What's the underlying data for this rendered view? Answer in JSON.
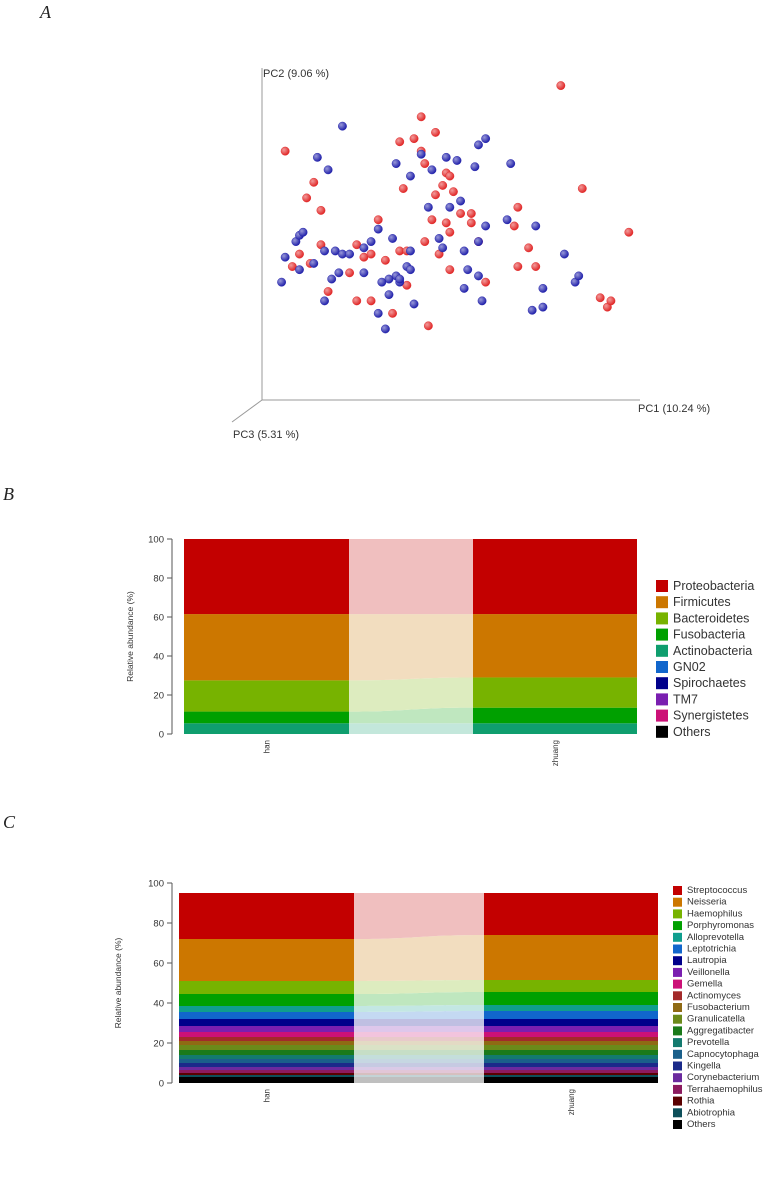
{
  "panels": {
    "a": "A",
    "b": "B",
    "c": "C"
  },
  "chart_data": [
    {
      "type": "scatter",
      "subtype": "3d-pca",
      "axes": {
        "pc1": "PC1  (10.24 %)",
        "pc2": "PC2  (9.06 %)",
        "pc3": "PC3  (5.31 %)"
      },
      "series": [
        {
          "name": "han",
          "color": "#e02020",
          "points": [
            [
              0.38,
              0.78
            ],
            [
              0.4,
              0.74
            ],
            [
              0.41,
              0.7
            ],
            [
              0.34,
              0.77
            ],
            [
              0.44,
              0.6
            ],
            [
              0.35,
              0.62
            ],
            [
              0.44,
              0.8
            ],
            [
              0.4,
              0.85
            ],
            [
              0.02,
              0.74
            ],
            [
              0.1,
              0.64
            ],
            [
              0.12,
              0.55
            ],
            [
              0.08,
              0.59
            ],
            [
              0.06,
              0.41
            ],
            [
              0.09,
              0.38
            ],
            [
              0.04,
              0.37
            ],
            [
              0.12,
              0.44
            ],
            [
              0.22,
              0.44
            ],
            [
              0.26,
              0.26
            ],
            [
              0.22,
              0.26
            ],
            [
              0.28,
              0.52
            ],
            [
              0.34,
              0.42
            ],
            [
              0.36,
              0.42
            ],
            [
              0.43,
              0.52
            ],
            [
              0.46,
              0.63
            ],
            [
              0.47,
              0.67
            ],
            [
              0.48,
              0.66
            ],
            [
              0.49,
              0.61
            ],
            [
              0.51,
              0.54
            ],
            [
              0.47,
              0.51
            ],
            [
              0.45,
              0.41
            ],
            [
              0.41,
              0.45
            ],
            [
              0.36,
              0.31
            ],
            [
              0.32,
              0.22
            ],
            [
              0.42,
              0.18
            ],
            [
              0.48,
              0.36
            ],
            [
              0.54,
              0.54
            ],
            [
              0.54,
              0.51
            ],
            [
              0.66,
              0.5
            ],
            [
              0.67,
              0.56
            ],
            [
              0.7,
              0.43
            ],
            [
              0.67,
              0.37
            ],
            [
              0.72,
              0.37
            ],
            [
              0.85,
              0.62
            ],
            [
              0.9,
              0.27
            ],
            [
              0.92,
              0.24
            ],
            [
              0.93,
              0.26
            ],
            [
              0.98,
              0.48
            ],
            [
              0.79,
              0.95
            ],
            [
              0.48,
              0.48
            ],
            [
              0.24,
              0.4
            ],
            [
              0.14,
              0.29
            ],
            [
              0.26,
              0.41
            ],
            [
              0.3,
              0.39
            ],
            [
              0.56,
              0.45
            ],
            [
              0.2,
              0.35
            ],
            [
              0.58,
              0.32
            ]
          ]
        },
        {
          "name": "zhuang",
          "color": "#1a1aa8",
          "points": [
            [
              0.18,
              0.82
            ],
            [
              0.11,
              0.72
            ],
            [
              0.14,
              0.68
            ],
            [
              0.33,
              0.7
            ],
            [
              0.37,
              0.66
            ],
            [
              0.4,
              0.73
            ],
            [
              0.43,
              0.68
            ],
            [
              0.42,
              0.56
            ],
            [
              0.47,
              0.72
            ],
            [
              0.5,
              0.71
            ],
            [
              0.56,
              0.76
            ],
            [
              0.51,
              0.58
            ],
            [
              0.48,
              0.56
            ],
            [
              0.02,
              0.4
            ],
            [
              0.05,
              0.45
            ],
            [
              0.06,
              0.47
            ],
            [
              0.07,
              0.48
            ],
            [
              0.13,
              0.42
            ],
            [
              0.1,
              0.38
            ],
            [
              0.16,
              0.42
            ],
            [
              0.18,
              0.41
            ],
            [
              0.17,
              0.35
            ],
            [
              0.15,
              0.33
            ],
            [
              0.2,
              0.41
            ],
            [
              0.24,
              0.43
            ],
            [
              0.26,
              0.45
            ],
            [
              0.28,
              0.49
            ],
            [
              0.32,
              0.46
            ],
            [
              0.36,
              0.37
            ],
            [
              0.37,
              0.42
            ],
            [
              0.33,
              0.34
            ],
            [
              0.31,
              0.33
            ],
            [
              0.31,
              0.28
            ],
            [
              0.34,
              0.32
            ],
            [
              0.37,
              0.36
            ],
            [
              0.45,
              0.46
            ],
            [
              0.52,
              0.42
            ],
            [
              0.53,
              0.36
            ],
            [
              0.52,
              0.3
            ],
            [
              0.57,
              0.26
            ],
            [
              0.58,
              0.78
            ],
            [
              0.65,
              0.7
            ],
            [
              0.55,
              0.69
            ],
            [
              0.56,
              0.45
            ],
            [
              0.58,
              0.5
            ],
            [
              0.01,
              0.32
            ],
            [
              0.06,
              0.36
            ],
            [
              0.13,
              0.26
            ],
            [
              0.24,
              0.35
            ],
            [
              0.29,
              0.32
            ],
            [
              0.28,
              0.22
            ],
            [
              0.3,
              0.17
            ],
            [
              0.38,
              0.25
            ],
            [
              0.34,
              0.33
            ],
            [
              0.56,
              0.34
            ],
            [
              0.71,
              0.23
            ],
            [
              0.74,
              0.24
            ],
            [
              0.83,
              0.32
            ],
            [
              0.84,
              0.34
            ],
            [
              0.64,
              0.52
            ],
            [
              0.72,
              0.5
            ],
            [
              0.8,
              0.41
            ],
            [
              0.74,
              0.3
            ],
            [
              0.46,
              0.43
            ]
          ]
        }
      ]
    },
    {
      "type": "bar",
      "subtype": "stacked-100-alluvial",
      "ylabel": "Relative abundance (%)",
      "ylim": [
        0,
        100
      ],
      "yticks": [
        "0",
        "20",
        "40",
        "60",
        "80",
        "100"
      ],
      "categories": [
        "han",
        "zhuang"
      ],
      "series": [
        {
          "name": "Actinobacteria",
          "color": "#0f9e6e",
          "values": [
            5.5,
            5.5
          ]
        },
        {
          "name": "Fusobacteria",
          "color": "#00a000",
          "values": [
            6.0,
            8.0
          ]
        },
        {
          "name": "Bacteroidetes",
          "color": "#77b300",
          "values": [
            16.0,
            15.5
          ]
        },
        {
          "name": "Firmicutes",
          "color": "#cc7700",
          "values": [
            34.0,
            32.5
          ]
        },
        {
          "name": "Proteobacteria",
          "color": "#c30000",
          "values": [
            38.5,
            38.5
          ]
        },
        {
          "name": "GN02",
          "color": "#1166cc",
          "values": [
            0,
            0
          ]
        },
        {
          "name": "Spirochaetes",
          "color": "#00008b",
          "values": [
            0,
            0
          ]
        },
        {
          "name": "TM7",
          "color": "#7a1fb0",
          "values": [
            0,
            0
          ]
        },
        {
          "name": "Synergistetes",
          "color": "#cc1177",
          "values": [
            0,
            0
          ]
        },
        {
          "name": "Others",
          "color": "#000000",
          "values": [
            0,
            0
          ]
        }
      ],
      "legend": [
        "Proteobacteria",
        "Firmicutes",
        "Bacteroidetes",
        "Fusobacteria",
        "Actinobacteria",
        "GN02",
        "Spirochaetes",
        "TM7",
        "Synergistetes",
        "Others"
      ]
    },
    {
      "type": "bar",
      "subtype": "stacked-100-alluvial",
      "ylabel": "Relative abundance (%)",
      "ylim": [
        0,
        100
      ],
      "yticks": [
        "0",
        "20",
        "40",
        "60",
        "80",
        "100"
      ],
      "categories": [
        "han",
        "zhuang"
      ],
      "series": [
        {
          "name": "Others",
          "color": "#000000",
          "values": [
            3.0,
            3.0
          ]
        },
        {
          "name": "Abiotrophia",
          "color": "#0d4f5a",
          "values": [
            1.0,
            1.0
          ]
        },
        {
          "name": "Rothia",
          "color": "#5a0000",
          "values": [
            1.0,
            1.0
          ]
        },
        {
          "name": "Terrahaemophilus",
          "color": "#8b1a5e",
          "values": [
            1.5,
            1.5
          ]
        },
        {
          "name": "Corynebacterium",
          "color": "#6b2a9e",
          "values": [
            1.5,
            1.5
          ]
        },
        {
          "name": "Kingella",
          "color": "#1b2a8a",
          "values": [
            2.0,
            2.0
          ]
        },
        {
          "name": "Capnocytophaga",
          "color": "#1a5f8a",
          "values": [
            2.0,
            2.0
          ]
        },
        {
          "name": "Prevotella",
          "color": "#137a6e",
          "values": [
            2.0,
            2.0
          ]
        },
        {
          "name": "Aggregatibacter",
          "color": "#1a7a1a",
          "values": [
            2.5,
            2.5
          ]
        },
        {
          "name": "Granulicatella",
          "color": "#6b8a1a",
          "values": [
            2.5,
            2.5
          ]
        },
        {
          "name": "Fusobacterium",
          "color": "#8f6a14",
          "values": [
            2.0,
            2.0
          ]
        },
        {
          "name": "Actinomyces",
          "color": "#a32a2a",
          "values": [
            2.0,
            2.0
          ]
        },
        {
          "name": "Gemella",
          "color": "#cc1177",
          "values": [
            2.5,
            2.5
          ]
        },
        {
          "name": "Veillonella",
          "color": "#7a1fb0",
          "values": [
            3.0,
            3.0
          ]
        },
        {
          "name": "Lautropia",
          "color": "#00008b",
          "values": [
            3.5,
            3.5
          ]
        },
        {
          "name": "Leptotrichia",
          "color": "#1166cc",
          "values": [
            3.5,
            4.0
          ]
        },
        {
          "name": "Alloprevotella",
          "color": "#0f9e8e",
          "values": [
            3.0,
            3.0
          ]
        },
        {
          "name": "Porphyromonas",
          "color": "#00a000",
          "values": [
            6.0,
            6.5
          ]
        },
        {
          "name": "Haemophilus",
          "color": "#77b300",
          "values": [
            6.5,
            6.0
          ]
        },
        {
          "name": "Neisseria",
          "color": "#cc7700",
          "values": [
            21.0,
            22.5
          ]
        },
        {
          "name": "Streptococcus",
          "color": "#c30000",
          "values": [
            23.0,
            21.0
          ]
        }
      ],
      "legend": [
        "Streptococcus",
        "Neisseria",
        "Haemophilus",
        "Porphyromonas",
        "Alloprevotella",
        "Leptotrichia",
        "Lautropia",
        "Veillonella",
        "Gemella",
        "Actinomyces",
        "Fusobacterium",
        "Granulicatella",
        "Aggregatibacter",
        "Prevotella",
        "Capnocytophaga",
        "Kingella",
        "Corynebacterium",
        "Terrahaemophilus",
        "Rothia",
        "Abiotrophia",
        "Others"
      ]
    }
  ]
}
